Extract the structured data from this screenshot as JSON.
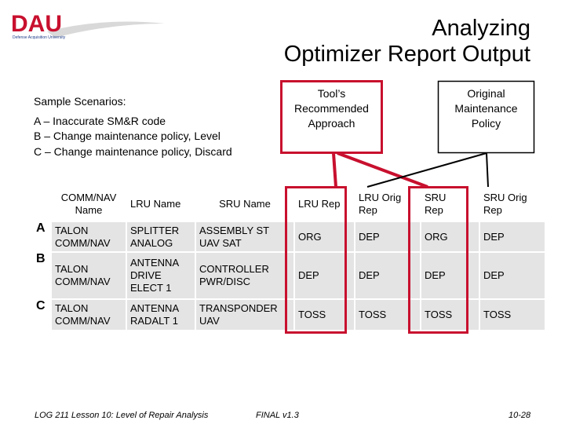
{
  "header": {
    "logo": "DAU",
    "logo_subtitle": "Defense Acquisition University",
    "title": [
      "Analyzing",
      "Optimizer Report Output"
    ]
  },
  "scenarios": {
    "heading": "Sample Scenarios:",
    "items": [
      "A –  Inaccurate SM&R code",
      "B – Change maintenance policy, Level",
      "C – Change maintenance policy, Discard"
    ]
  },
  "callouts": {
    "tool": "Tool’s\nRecommended\nApproach",
    "original": "Original\nMaintenance\nPolicy"
  },
  "table": {
    "header": [
      "COMM/NAV\nName",
      "LRU Name",
      "SRU Name",
      "LRU Rep",
      "LRU Orig\nRep",
      "SRU\nRep",
      "SRU Orig\nRep"
    ],
    "rows": [
      {
        "label": "A",
        "cells": [
          "TALON\nCOMM/NAV",
          "SPLITTER\nANALOG",
          "ASSEMBLY ST\nUAV SAT",
          "ORG",
          "DEP",
          "ORG",
          "DEP"
        ]
      },
      {
        "label": "B",
        "cells": [
          "TALON\nCOMM/NAV",
          "ANTENNA\nDRIVE\nELECT 1",
          "CONTROLLER\nPWR/DISC",
          "DEP",
          "DEP",
          "DEP",
          "DEP"
        ]
      },
      {
        "label": "C",
        "cells": [
          "TALON\nCOMM/NAV",
          "ANTENNA\nRADALT 1",
          "TRANSPONDER\nUAV",
          "TOSS",
          "TOSS",
          "TOSS",
          "TOSS"
        ]
      }
    ]
  },
  "footer": {
    "course": "LOG 211 Lesson 10: Level of Repair Analysis",
    "version": "FINAL v1.3",
    "page": "10-28"
  }
}
